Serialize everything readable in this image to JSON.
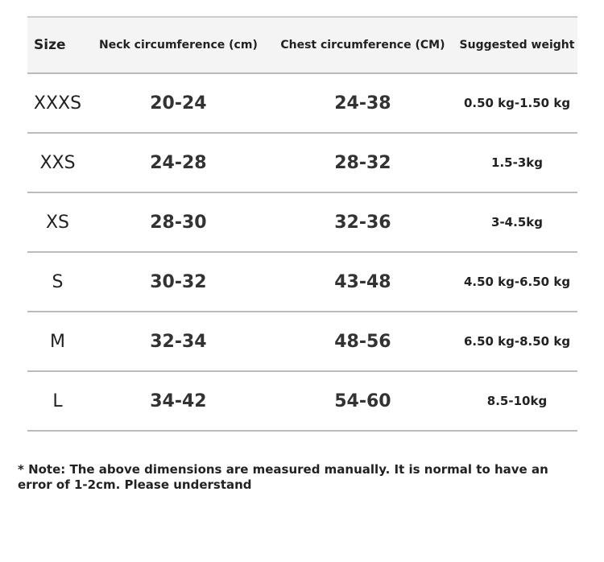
{
  "table": {
    "header": [
      "Size",
      "Neck circumference (cm)",
      "Chest circumference (CM)",
      "Suggested weight"
    ],
    "rows": [
      [
        "XXXS",
        "20-24",
        "24-38",
        "0.50 kg-1.50 kg"
      ],
      [
        "XXS",
        "24-28",
        "28-32",
        "1.5-3kg"
      ],
      [
        "XS",
        "28-30",
        "32-36",
        "3-4.5kg"
      ],
      [
        "S",
        "30-32",
        "43-48",
        "4.50 kg-6.50 kg"
      ],
      [
        "M",
        "32-34",
        "48-56",
        "6.50 kg-8.50 kg"
      ],
      [
        "L",
        "34-42",
        "54-60",
        "8.5-10kg"
      ]
    ]
  },
  "note": "* Note: The above dimensions are measured manually. It is normal to have an error of 1-2cm. Please understand"
}
